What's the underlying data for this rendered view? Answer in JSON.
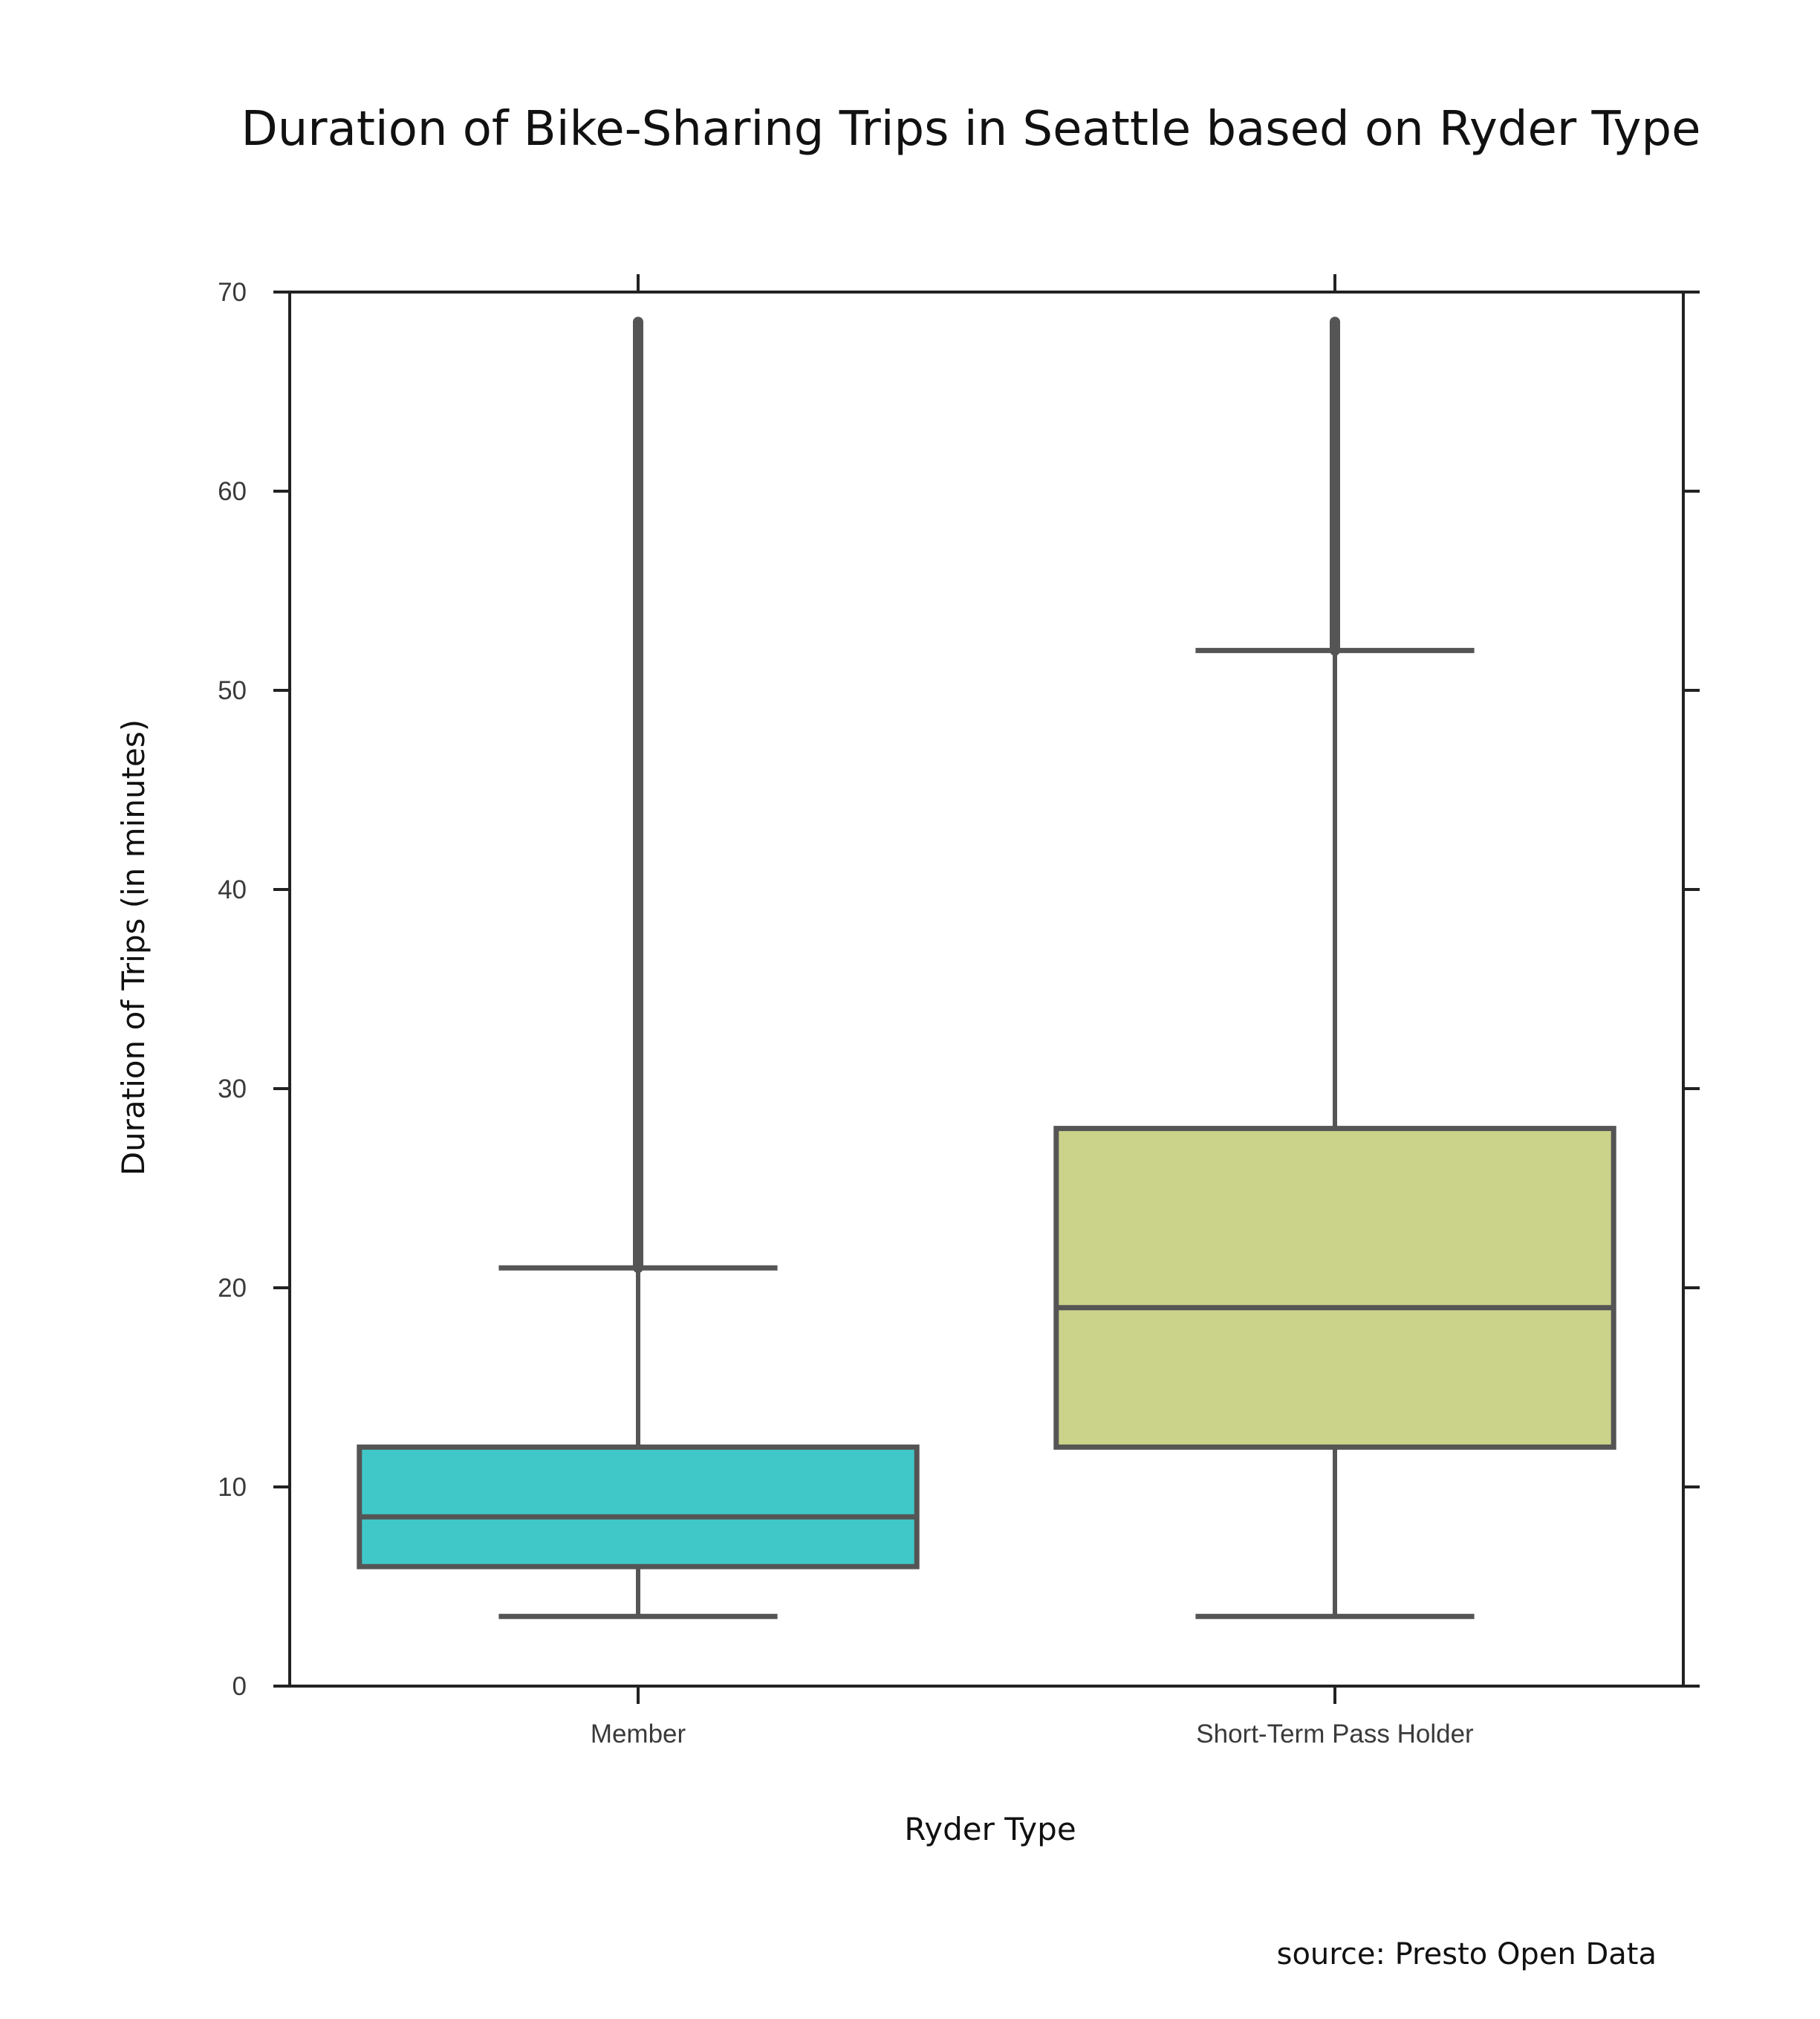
{
  "chart_data": {
    "type": "box",
    "title": "Duration of Bike-Sharing Trips in Seattle based on Ryder Type",
    "xlabel": "Ryder Type",
    "ylabel": "Duration of  Trips  (in minutes)",
    "ylim": [
      0,
      70
    ],
    "yticks": [
      0,
      10,
      20,
      30,
      40,
      50,
      60,
      70
    ],
    "grid": false,
    "categories": [
      "Member",
      "Short-Term Pass Holder"
    ],
    "boxes": [
      {
        "category": "Member",
        "whisker_low": 3.5,
        "q1": 6,
        "median": 8.5,
        "q3": 12,
        "whisker_high": 21,
        "outliers_from": 21,
        "outliers_to": 68.5,
        "color": "#40c8c8"
      },
      {
        "category": "Short-Term Pass Holder",
        "whisker_low": 3.5,
        "q1": 12,
        "median": 19,
        "q3": 28,
        "whisker_high": 52,
        "outliers_from": 52,
        "outliers_to": 68.5,
        "color": "#cbd28a"
      }
    ],
    "source": "source: Presto Open Data"
  },
  "colors": {
    "box_outline": "#555555",
    "axis": "#222222"
  }
}
